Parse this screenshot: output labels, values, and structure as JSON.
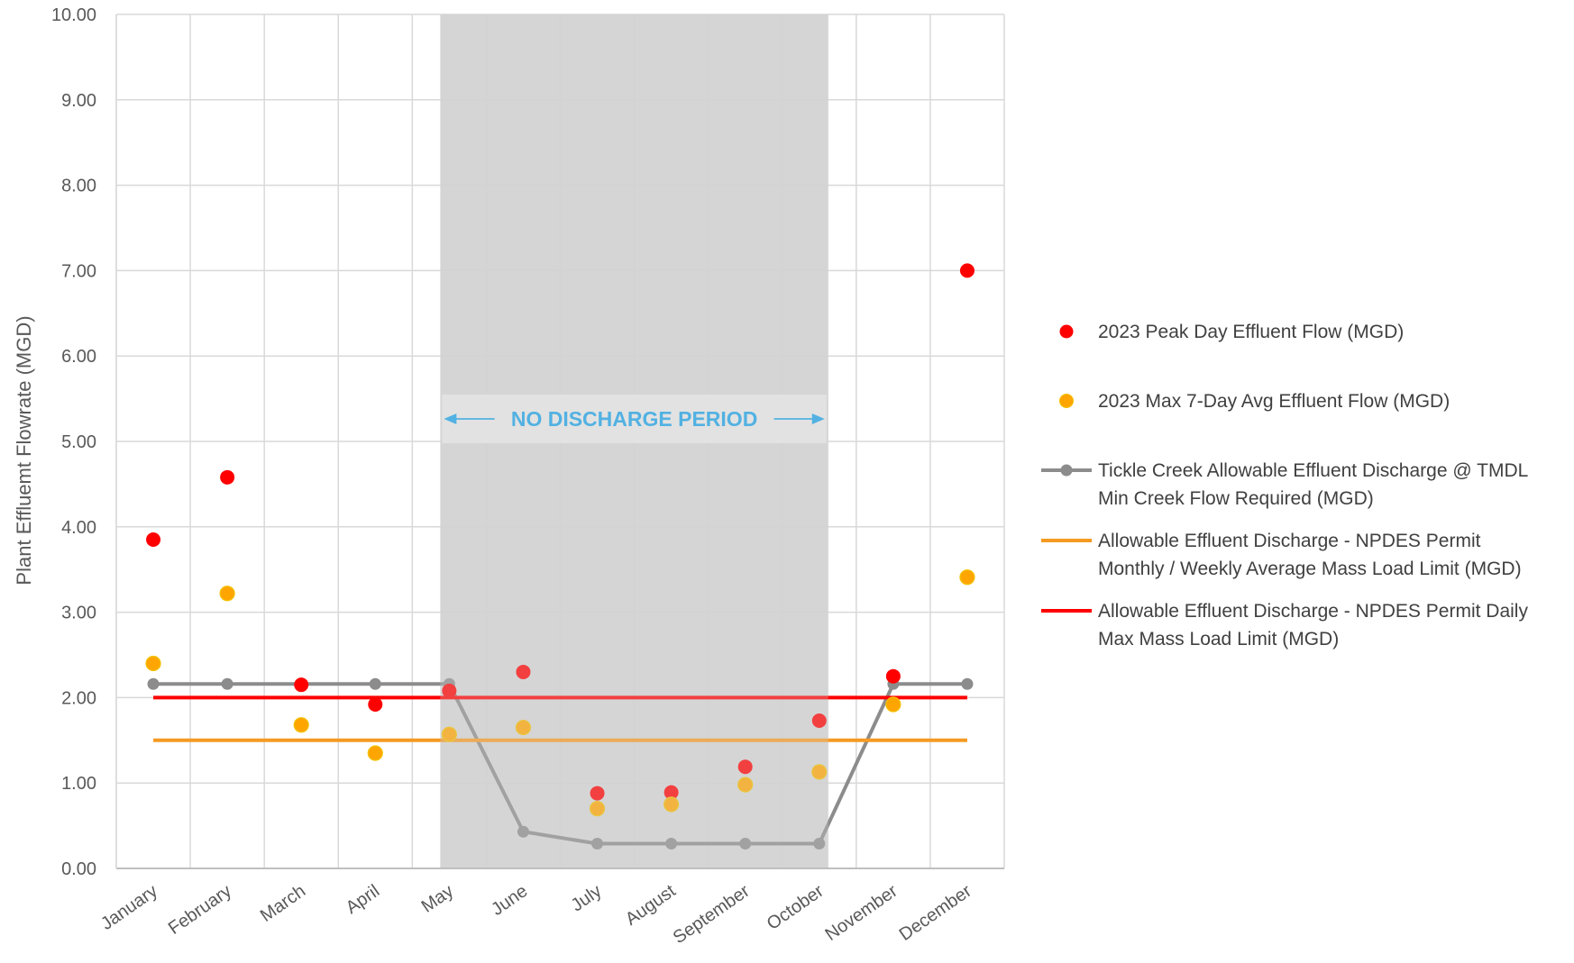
{
  "chart_data": {
    "type": "line",
    "title": "",
    "xlabel": "",
    "ylabel": "Plant Effluemt Flowrate (MGD)",
    "ylim": [
      0,
      10
    ],
    "yticks": [
      "0.00",
      "1.00",
      "2.00",
      "3.00",
      "4.00",
      "5.00",
      "6.00",
      "7.00",
      "8.00",
      "9.00",
      "10.00"
    ],
    "grid": true,
    "legend_position": "right",
    "categories": [
      "January",
      "February",
      "March",
      "April",
      "May",
      "June",
      "July",
      "August",
      "September",
      "October",
      "November",
      "December"
    ],
    "shaded_region": {
      "from": "May",
      "to": "October",
      "label": "NO DISCHARGE PERIOD",
      "color": "#d3d3d3",
      "label_color": "#1aa3e8"
    },
    "series": [
      {
        "name": "2023 Peak Day Effluent Flow (MGD)",
        "kind": "scatter",
        "color": "#ff0000",
        "values": [
          3.85,
          4.58,
          2.15,
          1.92,
          2.08,
          2.3,
          0.88,
          0.89,
          1.19,
          1.73,
          2.25,
          7.0
        ]
      },
      {
        "name": "2023 Max 7-Day  Avg Effluent Flow (MGD)",
        "kind": "scatter",
        "color": "#ffa500",
        "values": [
          2.4,
          3.22,
          1.68,
          1.35,
          1.57,
          1.65,
          0.7,
          0.75,
          0.98,
          1.13,
          1.92,
          3.41
        ]
      },
      {
        "name": "Tickle Creek Allowable Effluent Discharge @ TMDL Min Creek Flow Required (MGD)",
        "kind": "line-markers",
        "color": "#8c8c8c",
        "values": [
          2.16,
          2.16,
          2.16,
          2.16,
          2.16,
          0.43,
          0.29,
          0.29,
          0.29,
          0.29,
          2.16,
          2.16
        ]
      },
      {
        "name": "Allowable Effluent Discharge - NPDES Permit Monthly / Weekly Average Mass Load Limit (MGD)",
        "kind": "line",
        "color": "#f59a23",
        "values": [
          1.5,
          1.5,
          1.5,
          1.5,
          1.5,
          1.5,
          1.5,
          1.5,
          1.5,
          1.5,
          1.5,
          1.5
        ]
      },
      {
        "name": "Allowable Effluent Discharge - NPDES Permit Daily Max Mass Load Limit (MGD)",
        "kind": "line",
        "color": "#ff0000",
        "values": [
          2.0,
          2.0,
          2.0,
          2.0,
          2.0,
          2.0,
          2.0,
          2.0,
          2.0,
          2.0,
          2.0,
          2.0
        ]
      }
    ],
    "legend": [
      {
        "lines": [
          "2023 Peak Day Effluent Flow (MGD)"
        ],
        "color": "#ff0000",
        "marker": "dot"
      },
      {
        "lines": [
          "2023 Max 7-Day  Avg Effluent Flow (MGD)"
        ],
        "color": "#ffa500",
        "marker": "dot"
      },
      {
        "lines": [
          "Tickle Creek Allowable Effluent Discharge @ TMDL",
          "Min Creek Flow Required (MGD)"
        ],
        "color": "#8c8c8c",
        "marker": "line-dot"
      },
      {
        "lines": [
          "Allowable Effluent Discharge - NPDES Permit",
          "Monthly / Weekly Average Mass Load Limit (MGD)"
        ],
        "color": "#f59a23",
        "marker": "line"
      },
      {
        "lines": [
          "Allowable Effluent Discharge - NPDES Permit Daily",
          "Max Mass Load Limit (MGD)"
        ],
        "color": "#ff0000",
        "marker": "line"
      }
    ]
  }
}
